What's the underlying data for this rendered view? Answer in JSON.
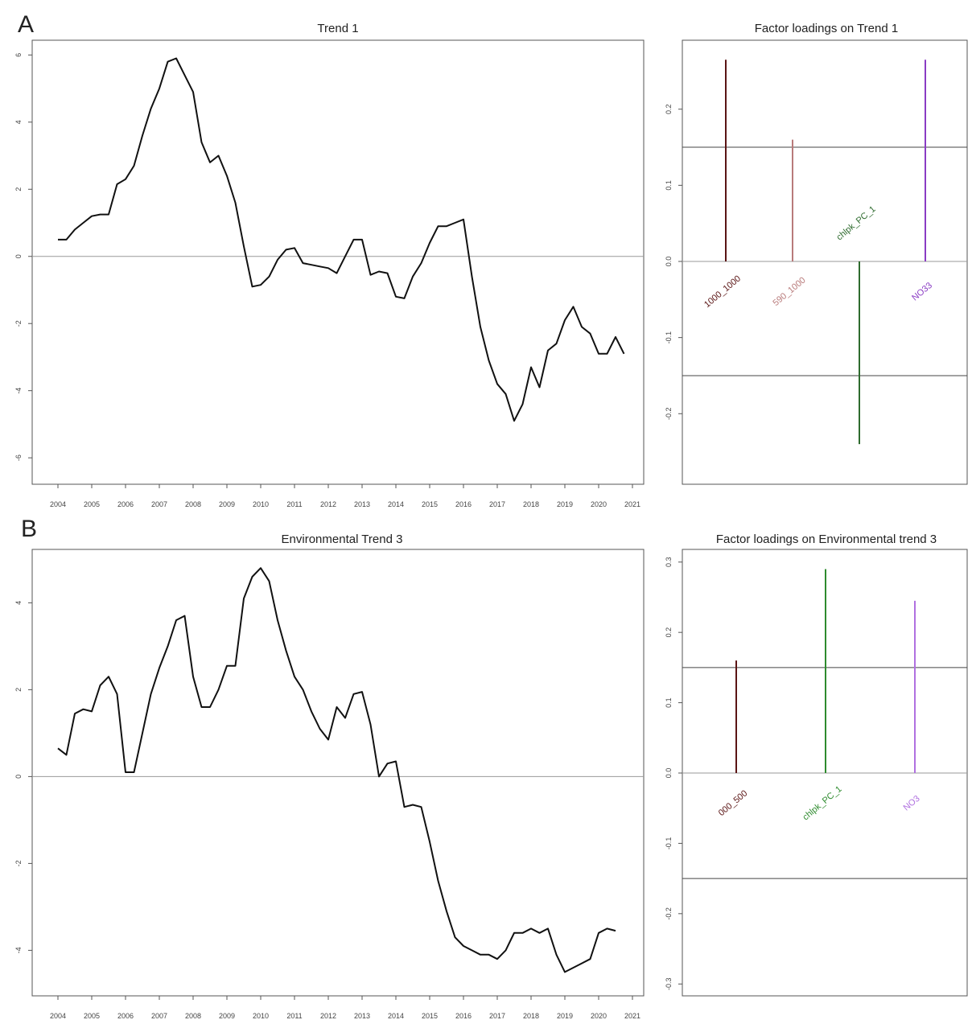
{
  "panels": [
    {
      "letter": "A",
      "trend": {
        "title": "Trend 1",
        "yticks": [
          -6,
          -4,
          -2,
          0,
          2,
          4,
          6
        ],
        "ylim": [
          -6.5,
          6.2
        ],
        "xticks": [
          "2004",
          "2005",
          "2006",
          "2007",
          "2008",
          "2009",
          "2010",
          "2011",
          "2012",
          "2013",
          "2014",
          "2015",
          "2016",
          "2017",
          "2018",
          "2019",
          "2020",
          "2021"
        ],
        "series": [
          [
            2004.0,
            0.5
          ],
          [
            2004.25,
            0.5
          ],
          [
            2004.5,
            0.8
          ],
          [
            2004.75,
            1.0
          ],
          [
            2005.0,
            1.2
          ],
          [
            2005.25,
            1.25
          ],
          [
            2005.5,
            1.25
          ],
          [
            2005.75,
            2.15
          ],
          [
            2006.0,
            2.3
          ],
          [
            2006.25,
            2.7
          ],
          [
            2006.5,
            3.6
          ],
          [
            2006.75,
            4.4
          ],
          [
            2007.0,
            5.0
          ],
          [
            2007.25,
            5.8
          ],
          [
            2007.5,
            5.9
          ],
          [
            2007.75,
            5.4
          ],
          [
            2008.0,
            4.9
          ],
          [
            2008.25,
            3.4
          ],
          [
            2008.5,
            2.8
          ],
          [
            2008.75,
            3.0
          ],
          [
            2009.0,
            2.4
          ],
          [
            2009.25,
            1.6
          ],
          [
            2009.5,
            0.3
          ],
          [
            2009.75,
            -0.9
          ],
          [
            2010.0,
            -0.85
          ],
          [
            2010.25,
            -0.6
          ],
          [
            2010.5,
            -0.1
          ],
          [
            2010.75,
            0.2
          ],
          [
            2011.0,
            0.25
          ],
          [
            2011.25,
            -0.2
          ],
          [
            2011.5,
            -0.25
          ],
          [
            2011.75,
            -0.3
          ],
          [
            2012.0,
            -0.35
          ],
          [
            2012.25,
            -0.5
          ],
          [
            2012.5,
            0.0
          ],
          [
            2012.75,
            0.5
          ],
          [
            2013.0,
            0.5
          ],
          [
            2013.25,
            -0.55
          ],
          [
            2013.5,
            -0.45
          ],
          [
            2013.75,
            -0.5
          ],
          [
            2014.0,
            -1.2
          ],
          [
            2014.25,
            -1.25
          ],
          [
            2014.5,
            -0.6
          ],
          [
            2014.75,
            -0.2
          ],
          [
            2015.0,
            0.4
          ],
          [
            2015.25,
            0.9
          ],
          [
            2015.5,
            0.9
          ],
          [
            2015.75,
            1.0
          ],
          [
            2016.0,
            1.1
          ],
          [
            2016.25,
            -0.6
          ],
          [
            2016.5,
            -2.1
          ],
          [
            2016.75,
            -3.1
          ],
          [
            2017.0,
            -3.8
          ],
          [
            2017.25,
            -4.1
          ],
          [
            2017.5,
            -4.9
          ],
          [
            2017.75,
            -4.4
          ],
          [
            2018.0,
            -3.3
          ],
          [
            2018.25,
            -3.9
          ],
          [
            2018.5,
            -2.8
          ],
          [
            2018.75,
            -2.6
          ],
          [
            2019.0,
            -1.9
          ],
          [
            2019.25,
            -1.5
          ],
          [
            2019.5,
            -2.1
          ],
          [
            2019.75,
            -2.3
          ],
          [
            2020.0,
            -2.9
          ],
          [
            2020.25,
            -2.9
          ],
          [
            2020.5,
            -2.4
          ],
          [
            2020.75,
            -2.9
          ]
        ]
      },
      "loadings": {
        "title": "Factor loadings on Trend 1",
        "yticks": [
          -0.2,
          -0.1,
          0.0,
          0.1,
          0.2
        ],
        "yticklabels": [
          "-0.2",
          "-0.1",
          "0.0",
          "0.1",
          "0.2"
        ],
        "ylim": [
          -0.28,
          0.28
        ],
        "threshold": 0.15,
        "bars": [
          {
            "label": "1000_1000",
            "value": 0.265,
            "color": "#5a1414"
          },
          {
            "label": "590_1000",
            "value": 0.16,
            "color": "#b87a7a"
          },
          {
            "label": "chlpk_PC_1",
            "value": -0.24,
            "color": "#2e6b2e"
          },
          {
            "label": "NO33",
            "value": 0.265,
            "color": "#8a3cc4"
          }
        ]
      }
    },
    {
      "letter": "B",
      "trend": {
        "title": "Environmental Trend 3",
        "yticks": [
          -4,
          -2,
          0,
          2,
          4
        ],
        "ylim": [
          -4.9,
          5.1
        ],
        "xticks": [
          "2004",
          "2005",
          "2006",
          "2007",
          "2008",
          "2009",
          "2010",
          "2011",
          "2012",
          "2013",
          "2014",
          "2015",
          "2016",
          "2017",
          "2018",
          "2019",
          "2020",
          "2021"
        ],
        "series": [
          [
            2004.0,
            0.65
          ],
          [
            2004.25,
            0.5
          ],
          [
            2004.5,
            1.45
          ],
          [
            2004.75,
            1.55
          ],
          [
            2005.0,
            1.5
          ],
          [
            2005.25,
            2.1
          ],
          [
            2005.5,
            2.3
          ],
          [
            2005.75,
            1.9
          ],
          [
            2006.0,
            0.1
          ],
          [
            2006.25,
            0.1
          ],
          [
            2006.5,
            1.0
          ],
          [
            2006.75,
            1.9
          ],
          [
            2007.0,
            2.5
          ],
          [
            2007.25,
            3.0
          ],
          [
            2007.5,
            3.6
          ],
          [
            2007.75,
            3.7
          ],
          [
            2008.0,
            2.3
          ],
          [
            2008.25,
            1.6
          ],
          [
            2008.5,
            1.6
          ],
          [
            2008.75,
            2.0
          ],
          [
            2009.0,
            2.55
          ],
          [
            2009.25,
            2.55
          ],
          [
            2009.5,
            4.1
          ],
          [
            2009.75,
            4.6
          ],
          [
            2010.0,
            4.8
          ],
          [
            2010.25,
            4.5
          ],
          [
            2010.5,
            3.6
          ],
          [
            2010.75,
            2.9
          ],
          [
            2011.0,
            2.3
          ],
          [
            2011.25,
            2.0
          ],
          [
            2011.5,
            1.5
          ],
          [
            2011.75,
            1.1
          ],
          [
            2012.0,
            0.85
          ],
          [
            2012.25,
            1.6
          ],
          [
            2012.5,
            1.35
          ],
          [
            2012.75,
            1.9
          ],
          [
            2013.0,
            1.95
          ],
          [
            2013.25,
            1.2
          ],
          [
            2013.5,
            0.0
          ],
          [
            2013.75,
            0.3
          ],
          [
            2014.0,
            0.35
          ],
          [
            2014.25,
            -0.7
          ],
          [
            2014.5,
            -0.65
          ],
          [
            2014.75,
            -0.7
          ],
          [
            2015.0,
            -1.5
          ],
          [
            2015.25,
            -2.4
          ],
          [
            2015.5,
            -3.1
          ],
          [
            2015.75,
            -3.7
          ],
          [
            2016.0,
            -3.9
          ],
          [
            2016.25,
            -4.0
          ],
          [
            2016.5,
            -4.1
          ],
          [
            2016.75,
            -4.1
          ],
          [
            2017.0,
            -4.2
          ],
          [
            2017.25,
            -4.0
          ],
          [
            2017.5,
            -3.6
          ],
          [
            2017.75,
            -3.6
          ],
          [
            2018.0,
            -3.5
          ],
          [
            2018.25,
            -3.6
          ],
          [
            2018.5,
            -3.5
          ],
          [
            2018.75,
            -4.1
          ],
          [
            2019.0,
            -4.5
          ],
          [
            2019.25,
            -4.4
          ],
          [
            2019.5,
            -4.3
          ],
          [
            2019.75,
            -4.2
          ],
          [
            2020.0,
            -3.6
          ],
          [
            2020.25,
            -3.5
          ],
          [
            2020.5,
            -3.55
          ]
        ]
      },
      "loadings": {
        "title": "Factor loadings on Environmental trend 3",
        "yticks": [
          -0.3,
          -0.2,
          -0.1,
          0.0,
          0.1,
          0.2,
          0.3
        ],
        "yticklabels": [
          "-0.3",
          "-0.2",
          "-0.1",
          "0.0",
          "0.1",
          "0.2",
          "0.3"
        ],
        "ylim": [
          -0.31,
          0.31
        ],
        "threshold": 0.15,
        "bars": [
          {
            "label": "000_500",
            "value": 0.16,
            "color": "#5a1414"
          },
          {
            "label": "chlpk_PC_1",
            "value": 0.29,
            "color": "#2e8b2e"
          },
          {
            "label": "NO3",
            "value": 0.245,
            "color": "#b070e0"
          }
        ]
      }
    }
  ],
  "chart_data": [
    {
      "type": "line",
      "title": "Trend 1",
      "xlabel": "",
      "ylabel": "",
      "xlim": [
        2004,
        2021
      ],
      "ylim": [
        -6.5,
        6.2
      ]
    },
    {
      "type": "bar",
      "title": "Factor loadings on Trend 1",
      "categories": [
        "1000_1000",
        "590_1000",
        "chlpk_PC_1",
        "NO33"
      ],
      "values": [
        0.265,
        0.16,
        -0.24,
        0.265
      ]
    },
    {
      "type": "line",
      "title": "Environmental Trend 3",
      "xlabel": "",
      "ylabel": "",
      "xlim": [
        2004,
        2021
      ],
      "ylim": [
        -4.9,
        5.1
      ]
    },
    {
      "type": "bar",
      "title": "Factor loadings on Environmental trend 3",
      "categories": [
        "000_500",
        "chlpk_PC_1",
        "NO3"
      ],
      "values": [
        0.16,
        0.29,
        0.245
      ]
    }
  ]
}
